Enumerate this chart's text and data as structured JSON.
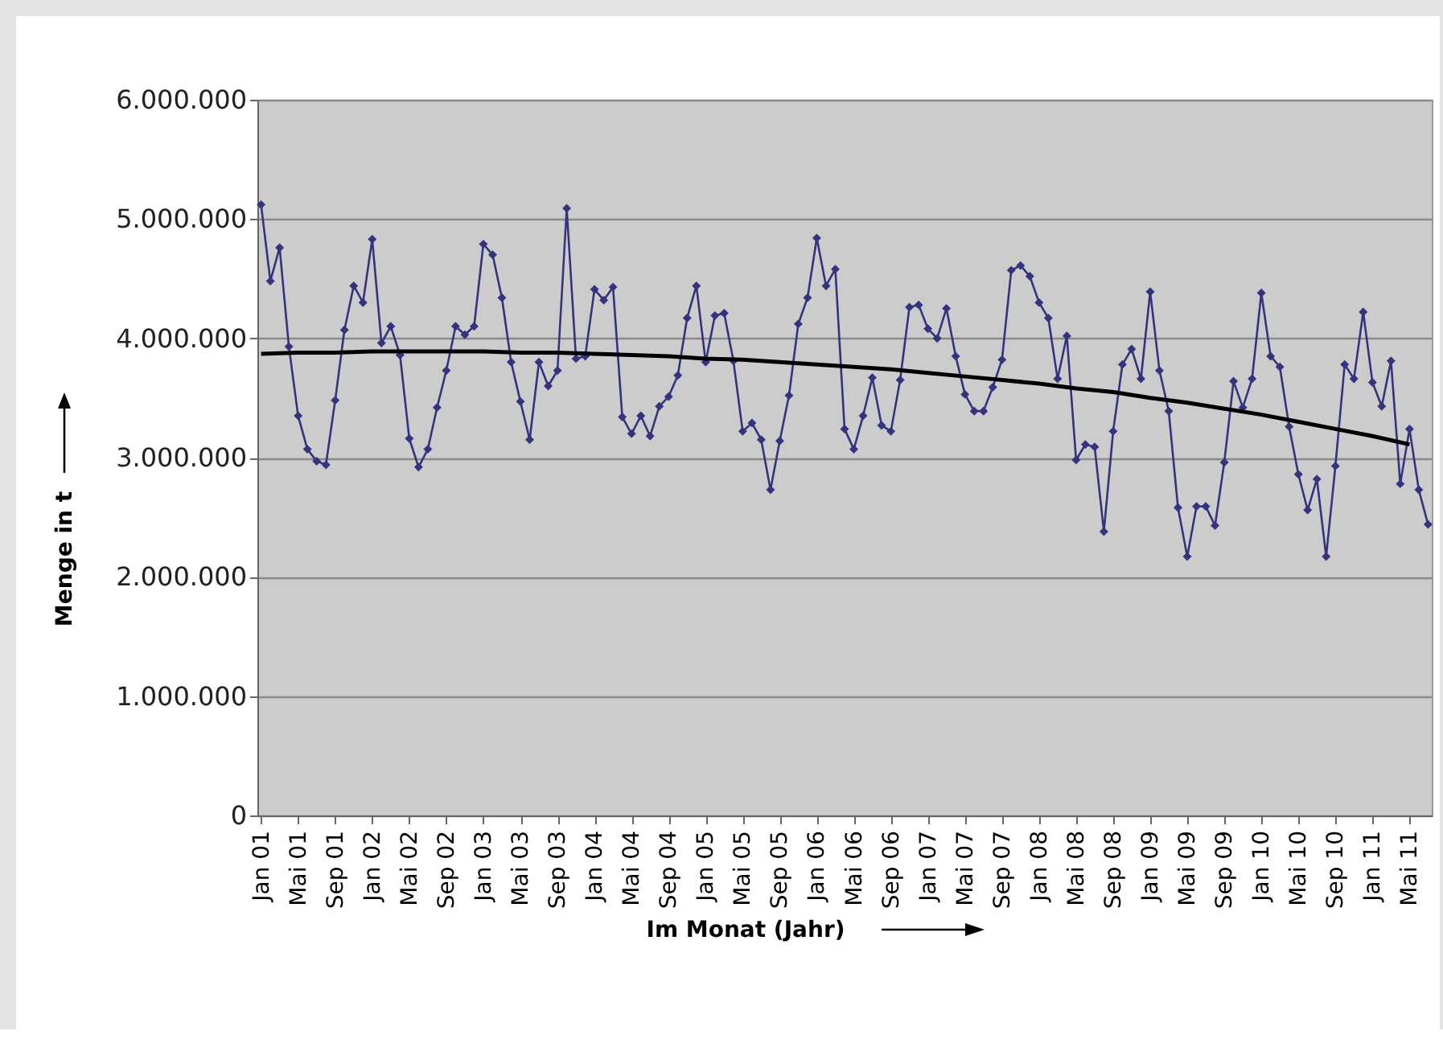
{
  "chart_data": {
    "type": "line",
    "xlabel": "Im Monat (Jahr)",
    "ylabel": "Menge in t",
    "categories": [
      "Jan 01",
      null,
      null,
      null,
      "Mai 01",
      null,
      null,
      null,
      "Sep 01",
      null,
      null,
      null,
      "Jan 02",
      null,
      null,
      null,
      "Mai 02",
      null,
      null,
      null,
      "Sep 02",
      null,
      null,
      null,
      "Jan 03",
      null,
      null,
      null,
      "Mai 03",
      null,
      null,
      null,
      "Sep 03",
      null,
      null,
      null,
      "Jan 04",
      null,
      null,
      null,
      "Mai 04",
      null,
      null,
      null,
      "Sep 04",
      null,
      null,
      null,
      "Jan 05",
      null,
      null,
      null,
      "Mai 05",
      null,
      null,
      null,
      "Sep 05",
      null,
      null,
      null,
      "Jan 06",
      null,
      null,
      null,
      "Mai 06",
      null,
      null,
      null,
      "Sep 06",
      null,
      null,
      null,
      "Jan 07",
      null,
      null,
      null,
      "Mai 07",
      null,
      null,
      null,
      "Sep 07",
      null,
      null,
      null,
      "Jan 08",
      null,
      null,
      null,
      "Mai 08",
      null,
      null,
      null,
      "Sep 08",
      null,
      null,
      null,
      "Jan 09",
      null,
      null,
      null,
      "Mai 09",
      null,
      null,
      null,
      "Sep 09",
      null,
      null,
      null,
      "Jan 10",
      null,
      null,
      null,
      "Mai 10",
      null,
      null,
      null,
      "Sep 10",
      null,
      null,
      null,
      "Jan 11",
      null,
      null,
      null,
      "Mai 11",
      null,
      null
    ],
    "series": [
      {
        "color": "#34347e",
        "values": [
          5120000,
          4480000,
          4760000,
          3930000,
          3350000,
          3070000,
          2970000,
          2940000,
          3480000,
          4070000,
          4440000,
          4300000,
          4830000,
          3960000,
          4100000,
          3860000,
          3160000,
          2920000,
          3070000,
          3420000,
          3730000,
          4100000,
          4030000,
          4100000,
          4790000,
          4700000,
          4340000,
          3800000,
          3470000,
          3150000,
          3800000,
          3600000,
          3730000,
          5090000,
          3830000,
          3850000,
          4410000,
          4320000,
          4430000,
          3340000,
          3200000,
          3350000,
          3180000,
          3430000,
          3510000,
          3690000,
          4170000,
          4440000,
          3800000,
          4190000,
          4210000,
          3810000,
          3220000,
          3290000,
          3150000,
          2730000,
          3140000,
          3520000,
          4120000,
          4340000,
          4840000,
          4440000,
          4580000,
          3240000,
          3070000,
          3350000,
          3670000,
          3270000,
          3220000,
          3650000,
          4260000,
          4280000,
          4080000,
          4000000,
          4250000,
          3850000,
          3530000,
          3390000,
          3390000,
          3590000,
          3820000,
          4570000,
          4610000,
          4520000,
          4300000,
          4170000,
          3660000,
          4020000,
          2980000,
          3110000,
          3090000,
          2380000,
          3220000,
          3780000,
          3910000,
          3660000,
          4390000,
          3730000,
          3390000,
          2580000,
          2170000,
          2590000,
          2590000,
          2430000,
          2960000,
          3640000,
          3420000,
          3660000,
          4380000,
          3850000,
          3760000,
          3260000,
          2860000,
          2560000,
          2820000,
          2170000,
          2930000,
          3780000,
          3660000,
          4220000,
          3630000,
          3430000,
          3810000,
          2780000,
          3240000,
          2730000,
          2440000
        ]
      },
      {
        "type": "line",
        "color": "#000000",
        "marker": "none",
        "x": [
          "Jan 01",
          "Mai 01",
          "Sep 01",
          "Jan 02",
          "Mai 02",
          "Sep 02",
          "Jan 03",
          "Mai 03",
          "Sep 03",
          "Jan 04",
          "Mai 04",
          "Sep 04",
          "Jan 05",
          "Mai 05",
          "Sep 05",
          "Jan 06",
          "Mai 06",
          "Sep 06",
          "Jan 07",
          "Mai 07",
          "Sep 07",
          "Jan 08",
          "Mai 08",
          "Sep 08",
          "Jan 09",
          "Mai 09",
          "Sep 09",
          "Jan 10",
          "Mai 10",
          "Sep 10",
          "Jan 11",
          "Mai 11"
        ],
        "values": [
          3870000,
          3880000,
          3880000,
          3890000,
          3890000,
          3890000,
          3890000,
          3880000,
          3880000,
          3870000,
          3860000,
          3850000,
          3830000,
          3820000,
          3800000,
          3780000,
          3760000,
          3740000,
          3710000,
          3680000,
          3650000,
          3620000,
          3580000,
          3550000,
          3500000,
          3460000,
          3410000,
          3360000,
          3300000,
          3240000,
          3180000,
          3110000
        ]
      }
    ],
    "ylim": [
      0,
      6000000
    ],
    "yticks": [
      0,
      {
        "value": 1000000,
        "label": "1.000.000"
      },
      {
        "value": 2000000,
        "label": "2.000.000"
      },
      {
        "value": 3000000,
        "label": "3.000.000"
      },
      {
        "value": 4000000,
        "label": "4.000.000"
      },
      {
        "value": 5000000,
        "label": "5.000.000"
      },
      {
        "value": 6000000,
        "label": "6.000.000"
      }
    ],
    "grid": "y",
    "marker": "diamond",
    "line_style": "solid"
  }
}
